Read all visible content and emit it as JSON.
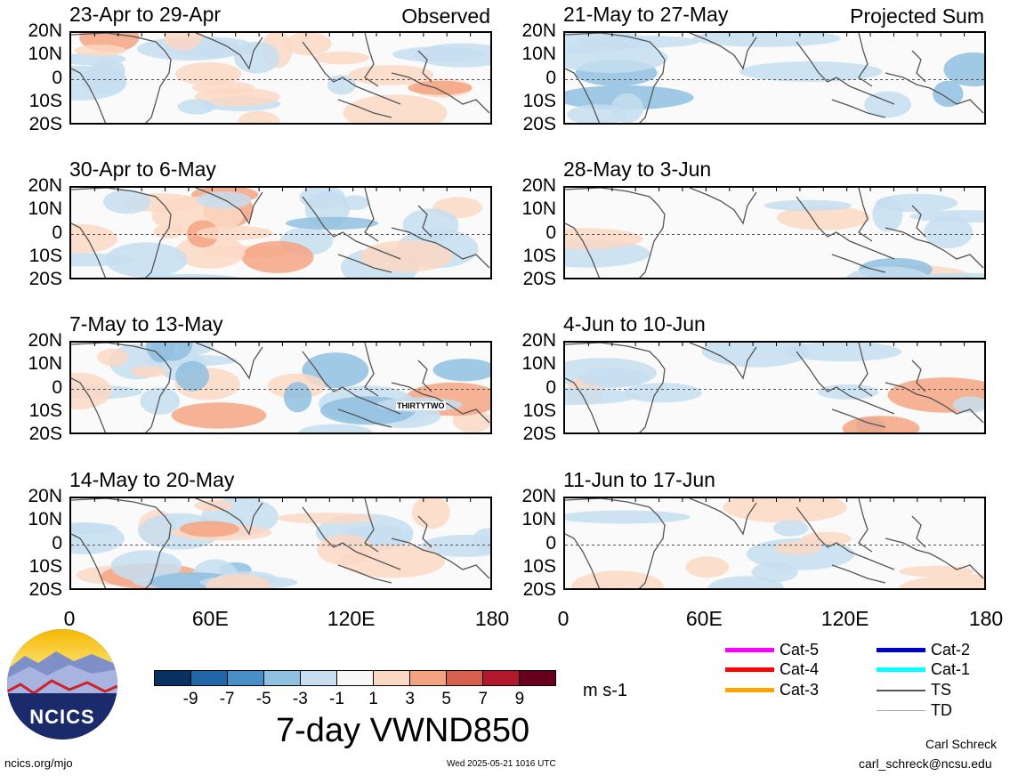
{
  "panels_left": [
    {
      "title": "23-Apr to 29-Apr",
      "corner": "Observed"
    },
    {
      "title": "30-Apr to 6-May",
      "corner": ""
    },
    {
      "title": "7-May to 13-May",
      "corner": "",
      "storm_label": "THIRTYTWO"
    },
    {
      "title": "14-May to 20-May",
      "corner": ""
    }
  ],
  "panels_right": [
    {
      "title": "21-May to 27-May",
      "corner": "Projected Sum"
    },
    {
      "title": "28-May to 3-Jun",
      "corner": ""
    },
    {
      "title": "4-Jun to 10-Jun",
      "corner": ""
    },
    {
      "title": "11-Jun to 17-Jun",
      "corner": ""
    }
  ],
  "lat_labels": [
    "20N",
    "10N",
    "0",
    "10S",
    "20S"
  ],
  "lon_labels": [
    "0",
    "60E",
    "120E",
    "180"
  ],
  "colorbar": {
    "colors": [
      "#0a3060",
      "#2266aa",
      "#4a8ec8",
      "#8fc0e0",
      "#c6def0",
      "#f7f7f7",
      "#fbd8c4",
      "#f4a482",
      "#d6604d",
      "#b2182b",
      "#67001f"
    ],
    "ticks": [
      "-9",
      "-7",
      "-5",
      "-3",
      "-1",
      "1",
      "3",
      "5",
      "7",
      "9"
    ],
    "units": "m s-1"
  },
  "main_title": "7-day VWND850",
  "legend": [
    {
      "label": "Cat-5",
      "color": "#ff00ff"
    },
    {
      "label": "Cat-4",
      "color": "#ff0000"
    },
    {
      "label": "Cat-3",
      "color": "#ffa500"
    },
    {
      "label": "Cat-2",
      "color": "#0000cc"
    },
    {
      "label": "Cat-1",
      "color": "#00ffff"
    },
    {
      "label": "TS",
      "color": "#555555"
    },
    {
      "label": "TD",
      "color": "#aaaaaa"
    }
  ],
  "logo_text": "NCICS",
  "footer": {
    "url": "ncics.org/mjo",
    "timestamp": "Wed 2025-05-21 1016 UTC",
    "author": "Carl Schreck",
    "email": "carl_schreck@ncsu.edu"
  }
}
